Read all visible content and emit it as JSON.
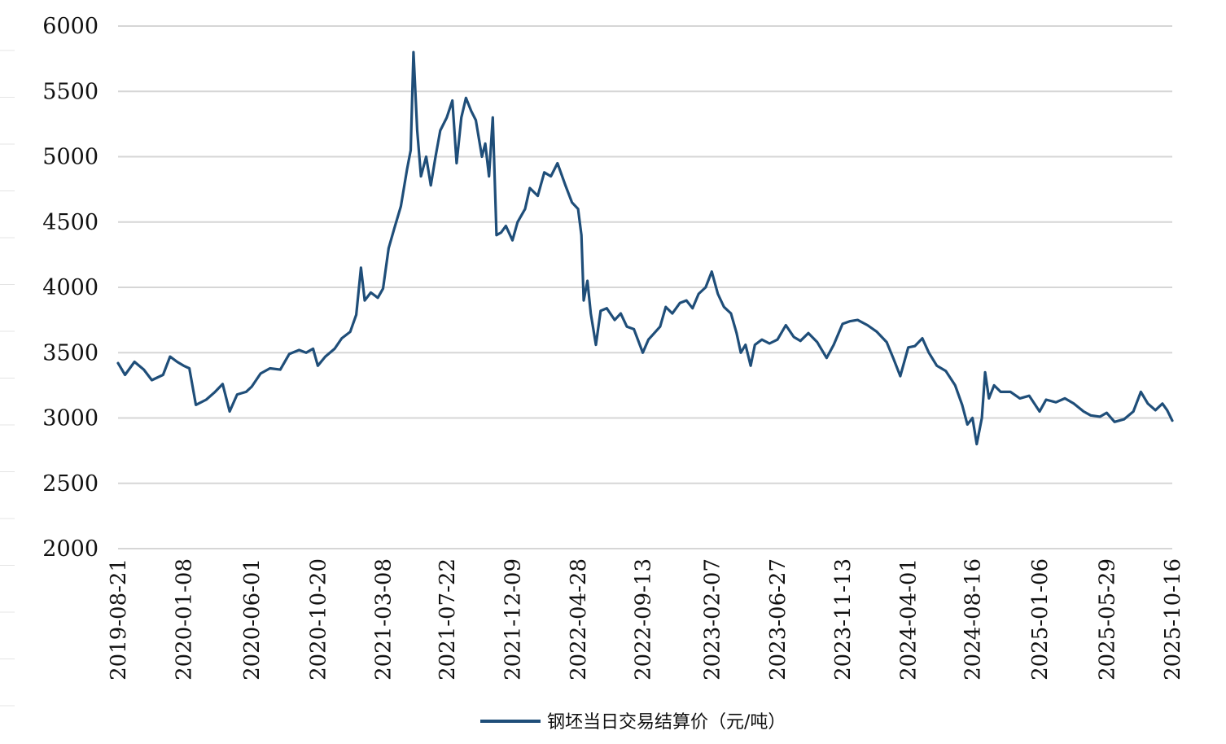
{
  "chart_data": {
    "type": "line",
    "title": "",
    "xlabel": "",
    "ylabel": "",
    "ylim": [
      2000,
      6000
    ],
    "y_ticks": [
      "6000",
      "5500",
      "5000",
      "4500",
      "4000",
      "3500",
      "3000",
      "2500",
      "2000"
    ],
    "x_ticks": [
      "2019-08-21",
      "2020-01-08",
      "2020-06-01",
      "2020-10-20",
      "2021-03-08",
      "2021-07-22",
      "2021-12-09",
      "2022-04-28",
      "2022-09-13",
      "2023-02-07",
      "2023-06-27",
      "2023-11-13",
      "2024-04-01",
      "2024-08-16",
      "2025-01-06",
      "2025-05-29",
      "2025-10-16"
    ],
    "grid": true,
    "legend_position": "bottom",
    "series": [
      {
        "name": "钢坯当日交易结算价（元/吨）",
        "color": "#1f4e79",
        "points": [
          [
            "2019-08-21",
            3420
          ],
          [
            "2019-09-05",
            3330
          ],
          [
            "2019-09-25",
            3430
          ],
          [
            "2019-10-15",
            3370
          ],
          [
            "2019-11-01",
            3290
          ],
          [
            "2019-11-25",
            3330
          ],
          [
            "2019-12-10",
            3470
          ],
          [
            "2019-12-25",
            3430
          ],
          [
            "2020-01-08",
            3400
          ],
          [
            "2020-01-20",
            3380
          ],
          [
            "2020-02-03",
            3100
          ],
          [
            "2020-02-25",
            3140
          ],
          [
            "2020-03-15",
            3200
          ],
          [
            "2020-03-31",
            3260
          ],
          [
            "2020-04-15",
            3050
          ],
          [
            "2020-05-01",
            3180
          ],
          [
            "2020-05-20",
            3200
          ],
          [
            "2020-06-01",
            3240
          ],
          [
            "2020-06-20",
            3340
          ],
          [
            "2020-07-10",
            3380
          ],
          [
            "2020-08-01",
            3370
          ],
          [
            "2020-08-20",
            3490
          ],
          [
            "2020-09-10",
            3520
          ],
          [
            "2020-09-25",
            3500
          ],
          [
            "2020-10-10",
            3530
          ],
          [
            "2020-10-20",
            3400
          ],
          [
            "2020-11-05",
            3470
          ],
          [
            "2020-11-25",
            3530
          ],
          [
            "2020-12-10",
            3610
          ],
          [
            "2020-12-28",
            3660
          ],
          [
            "2021-01-10",
            3790
          ],
          [
            "2021-01-20",
            4150
          ],
          [
            "2021-01-28",
            3900
          ],
          [
            "2021-02-10",
            3960
          ],
          [
            "2021-02-25",
            3920
          ],
          [
            "2021-03-08",
            3990
          ],
          [
            "2021-03-20",
            4300
          ],
          [
            "2021-04-01",
            4450
          ],
          [
            "2021-04-15",
            4620
          ],
          [
            "2021-04-28",
            4900
          ],
          [
            "2021-05-06",
            5050
          ],
          [
            "2021-05-12",
            5800
          ],
          [
            "2021-05-20",
            5200
          ],
          [
            "2021-05-28",
            4850
          ],
          [
            "2021-06-08",
            5000
          ],
          [
            "2021-06-18",
            4780
          ],
          [
            "2021-06-28",
            5000
          ],
          [
            "2021-07-08",
            5200
          ],
          [
            "2021-07-22",
            5300
          ],
          [
            "2021-08-03",
            5430
          ],
          [
            "2021-08-12",
            4950
          ],
          [
            "2021-08-22",
            5300
          ],
          [
            "2021-09-01",
            5450
          ],
          [
            "2021-09-12",
            5350
          ],
          [
            "2021-09-22",
            5280
          ],
          [
            "2021-10-05",
            5000
          ],
          [
            "2021-10-12",
            5100
          ],
          [
            "2021-10-20",
            4850
          ],
          [
            "2021-10-28",
            5300
          ],
          [
            "2021-11-05",
            4400
          ],
          [
            "2021-11-15",
            4420
          ],
          [
            "2021-11-25",
            4470
          ],
          [
            "2021-12-09",
            4360
          ],
          [
            "2021-12-20",
            4500
          ],
          [
            "2022-01-05",
            4600
          ],
          [
            "2022-01-15",
            4760
          ],
          [
            "2022-02-01",
            4700
          ],
          [
            "2022-02-15",
            4880
          ],
          [
            "2022-03-01",
            4850
          ],
          [
            "2022-03-15",
            4950
          ],
          [
            "2022-04-01",
            4780
          ],
          [
            "2022-04-15",
            4650
          ],
          [
            "2022-04-28",
            4600
          ],
          [
            "2022-05-05",
            4400
          ],
          [
            "2022-05-10",
            3900
          ],
          [
            "2022-05-18",
            4050
          ],
          [
            "2022-05-25",
            3800
          ],
          [
            "2022-06-05",
            3560
          ],
          [
            "2022-06-15",
            3820
          ],
          [
            "2022-06-28",
            3840
          ],
          [
            "2022-07-15",
            3750
          ],
          [
            "2022-07-28",
            3800
          ],
          [
            "2022-08-10",
            3700
          ],
          [
            "2022-08-25",
            3680
          ],
          [
            "2022-09-13",
            3500
          ],
          [
            "2022-09-25",
            3600
          ],
          [
            "2022-10-05",
            3640
          ],
          [
            "2022-10-20",
            3700
          ],
          [
            "2022-11-01",
            3850
          ],
          [
            "2022-11-15",
            3800
          ],
          [
            "2022-12-01",
            3880
          ],
          [
            "2022-12-15",
            3900
          ],
          [
            "2022-12-28",
            3840
          ],
          [
            "2023-01-10",
            3950
          ],
          [
            "2023-01-25",
            4000
          ],
          [
            "2023-02-07",
            4120
          ],
          [
            "2023-02-20",
            3950
          ],
          [
            "2023-03-05",
            3850
          ],
          [
            "2023-03-20",
            3800
          ],
          [
            "2023-04-01",
            3650
          ],
          [
            "2023-04-10",
            3500
          ],
          [
            "2023-04-20",
            3560
          ],
          [
            "2023-05-01",
            3400
          ],
          [
            "2023-05-10",
            3560
          ],
          [
            "2023-05-25",
            3600
          ],
          [
            "2023-06-10",
            3570
          ],
          [
            "2023-06-27",
            3600
          ],
          [
            "2023-07-15",
            3710
          ],
          [
            "2023-08-01",
            3620
          ],
          [
            "2023-08-15",
            3590
          ],
          [
            "2023-09-01",
            3650
          ],
          [
            "2023-09-20",
            3580
          ],
          [
            "2023-10-10",
            3460
          ],
          [
            "2023-10-25",
            3560
          ],
          [
            "2023-11-13",
            3720
          ],
          [
            "2023-11-28",
            3740
          ],
          [
            "2023-12-15",
            3750
          ],
          [
            "2024-01-05",
            3710
          ],
          [
            "2024-01-25",
            3660
          ],
          [
            "2024-02-15",
            3580
          ],
          [
            "2024-03-01",
            3450
          ],
          [
            "2024-03-15",
            3320
          ],
          [
            "2024-04-01",
            3540
          ],
          [
            "2024-04-15",
            3550
          ],
          [
            "2024-05-01",
            3610
          ],
          [
            "2024-05-15",
            3500
          ],
          [
            "2024-06-01",
            3400
          ],
          [
            "2024-06-20",
            3360
          ],
          [
            "2024-07-10",
            3250
          ],
          [
            "2024-07-25",
            3100
          ],
          [
            "2024-08-05",
            2950
          ],
          [
            "2024-08-16",
            3000
          ],
          [
            "2024-08-25",
            2800
          ],
          [
            "2024-09-05",
            3000
          ],
          [
            "2024-09-12",
            3350
          ],
          [
            "2024-09-20",
            3150
          ],
          [
            "2024-10-01",
            3250
          ],
          [
            "2024-10-15",
            3200
          ],
          [
            "2024-11-05",
            3200
          ],
          [
            "2024-11-25",
            3150
          ],
          [
            "2024-12-15",
            3170
          ],
          [
            "2025-01-06",
            3050
          ],
          [
            "2025-01-20",
            3140
          ],
          [
            "2025-02-10",
            3120
          ],
          [
            "2025-03-01",
            3150
          ],
          [
            "2025-03-20",
            3110
          ],
          [
            "2025-04-10",
            3050
          ],
          [
            "2025-04-25",
            3020
          ],
          [
            "2025-05-15",
            3010
          ],
          [
            "2025-05-29",
            3040
          ],
          [
            "2025-06-15",
            2970
          ],
          [
            "2025-07-05",
            2990
          ],
          [
            "2025-07-25",
            3050
          ],
          [
            "2025-08-10",
            3200
          ],
          [
            "2025-08-25",
            3110
          ],
          [
            "2025-09-10",
            3060
          ],
          [
            "2025-09-25",
            3110
          ],
          [
            "2025-10-05",
            3060
          ],
          [
            "2025-10-16",
            2980
          ]
        ]
      }
    ]
  }
}
